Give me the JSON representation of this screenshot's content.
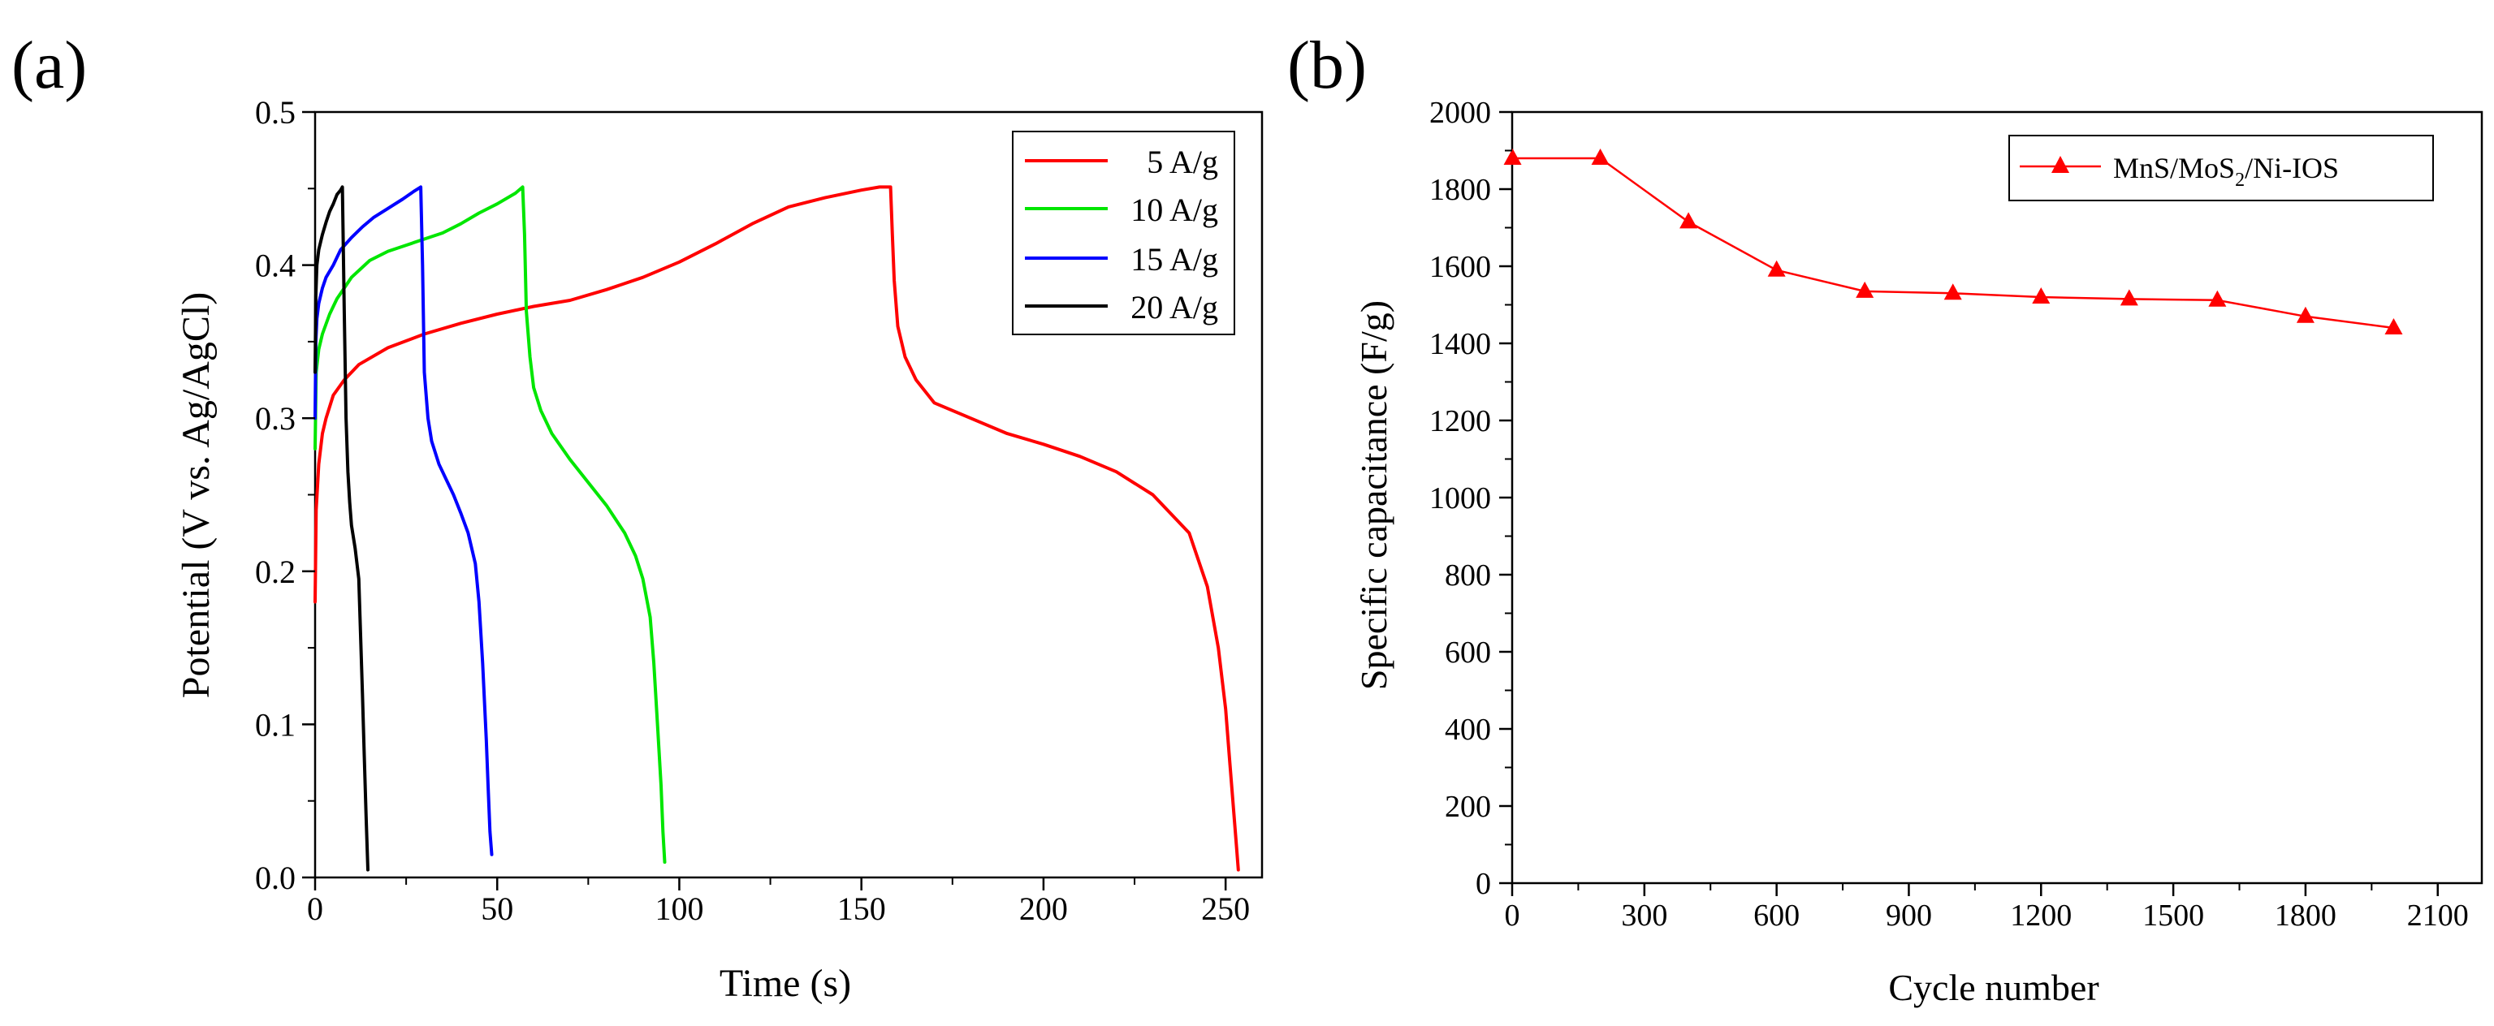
{
  "chart_data": [
    {
      "type": "line",
      "panel_label": "(a)",
      "xlabel": "Time (s)",
      "ylabel": "Potential (V vs. Ag/AgCl)",
      "xlim": [
        0,
        260
      ],
      "ylim": [
        0.0,
        0.5
      ],
      "x_ticks": [
        "0",
        "50",
        "100",
        "150",
        "200",
        "250"
      ],
      "y_ticks": [
        "0.0",
        "0.1",
        "0.2",
        "0.3",
        "0.4",
        "0.5"
      ],
      "legend_position": "top-right",
      "series": [
        {
          "name": "5 A/g",
          "color": "#ff0000",
          "x": [
            0,
            0.3,
            1,
            2,
            3,
            5,
            8,
            12,
            20,
            30,
            40,
            50,
            60,
            70,
            80,
            90,
            100,
            110,
            120,
            130,
            140,
            150,
            155,
            158,
            158.5,
            159,
            160,
            162,
            165,
            170,
            180,
            190,
            200,
            210,
            220,
            230,
            240,
            245,
            248,
            250,
            251,
            252,
            253,
            253.5
          ],
          "y": [
            0.18,
            0.24,
            0.27,
            0.29,
            0.3,
            0.315,
            0.325,
            0.335,
            0.346,
            0.355,
            0.362,
            0.368,
            0.373,
            0.377,
            0.384,
            0.392,
            0.402,
            0.414,
            0.427,
            0.438,
            0.444,
            0.449,
            0.451,
            0.451,
            0.42,
            0.39,
            0.36,
            0.34,
            0.325,
            0.31,
            0.3,
            0.29,
            0.283,
            0.275,
            0.265,
            0.25,
            0.225,
            0.19,
            0.15,
            0.11,
            0.08,
            0.05,
            0.02,
            0.005
          ]
        },
        {
          "name": "10 A/g",
          "color": "#00e600",
          "x": [
            0,
            0.3,
            1,
            2,
            4,
            6,
            8,
            10,
            15,
            20,
            25,
            30,
            35,
            40,
            45,
            50,
            55,
            57,
            57.5,
            58,
            59,
            60,
            62,
            65,
            70,
            75,
            80,
            85,
            88,
            90,
            92,
            93,
            94,
            95,
            95.5,
            96
          ],
          "y": [
            0.28,
            0.33,
            0.345,
            0.355,
            0.368,
            0.378,
            0.385,
            0.392,
            0.403,
            0.409,
            0.413,
            0.417,
            0.421,
            0.427,
            0.434,
            0.44,
            0.447,
            0.451,
            0.42,
            0.37,
            0.34,
            0.32,
            0.305,
            0.29,
            0.273,
            0.258,
            0.243,
            0.225,
            0.21,
            0.195,
            0.17,
            0.14,
            0.1,
            0.06,
            0.03,
            0.01
          ]
        },
        {
          "name": "15 A/g",
          "color": "#0000ff",
          "x": [
            0,
            0.2,
            0.5,
            1,
            2,
            3,
            5,
            7,
            10,
            13,
            16,
            20,
            24,
            27,
            29,
            29.5,
            30,
            31,
            32,
            34,
            36,
            38,
            40,
            42,
            44,
            45,
            46,
            47,
            47.5,
            48,
            48.5
          ],
          "y": [
            0.3,
            0.35,
            0.365,
            0.375,
            0.385,
            0.392,
            0.4,
            0.41,
            0.418,
            0.425,
            0.431,
            0.437,
            0.443,
            0.448,
            0.451,
            0.4,
            0.33,
            0.3,
            0.285,
            0.27,
            0.26,
            0.25,
            0.238,
            0.225,
            0.205,
            0.18,
            0.14,
            0.09,
            0.06,
            0.03,
            0.015
          ]
        },
        {
          "name": "20 A/g",
          "color": "#000000",
          "x": [
            0,
            0.2,
            0.5,
            1,
            2,
            3,
            4,
            5,
            6,
            7,
            7.5,
            8,
            8.5,
            9,
            9.5,
            10,
            11,
            12,
            13,
            13.5,
            14,
            14.5
          ],
          "y": [
            0.33,
            0.38,
            0.4,
            0.41,
            0.42,
            0.428,
            0.435,
            0.44,
            0.446,
            0.449,
            0.451,
            0.37,
            0.3,
            0.265,
            0.245,
            0.23,
            0.215,
            0.195,
            0.12,
            0.08,
            0.04,
            0.005
          ]
        }
      ]
    },
    {
      "type": "line",
      "panel_label": "(b)",
      "xlabel": "Cycle number",
      "ylabel": "Specific capacitance (F/g)",
      "xlim": [
        0,
        2200
      ],
      "ylim": [
        0,
        2000
      ],
      "x_ticks": [
        "0",
        "300",
        "600",
        "900",
        "1200",
        "1500",
        "1800",
        "2100"
      ],
      "y_ticks": [
        "0",
        "200",
        "400",
        "600",
        "800",
        "1000",
        "1200",
        "1400",
        "1600",
        "1800",
        "2000"
      ],
      "legend_position": "top-right",
      "series": [
        {
          "name": "MnS/MoS2/Ni-IOS",
          "name_parts": [
            "MnS/MoS",
            "2",
            "/Ni-IOS"
          ],
          "color": "#ff0000",
          "marker": "triangle",
          "x": [
            1,
            200,
            400,
            600,
            800,
            1000,
            1200,
            1400,
            1600,
            1800,
            2000
          ],
          "y": [
            1880,
            1880,
            1715,
            1590,
            1535,
            1530,
            1520,
            1515,
            1512,
            1470,
            1440
          ]
        }
      ]
    }
  ]
}
